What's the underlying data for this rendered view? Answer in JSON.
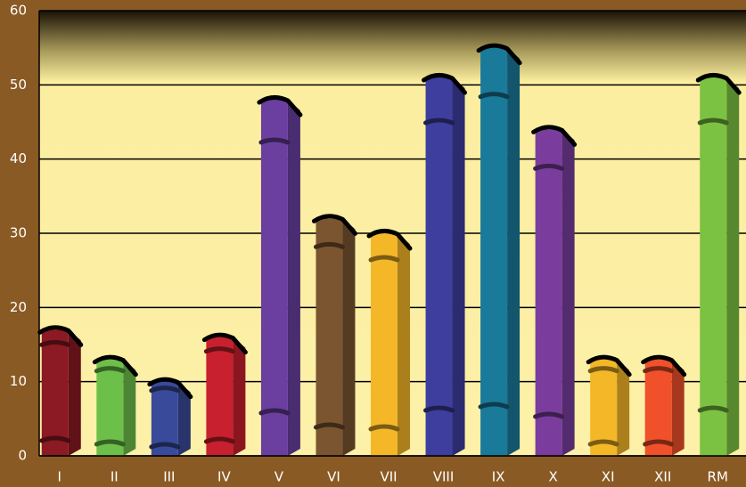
{
  "chart_data": {
    "type": "bar",
    "categories": [
      "I",
      "II",
      "III",
      "IV",
      "V",
      "VI",
      "VII",
      "VIII",
      "IX",
      "X",
      "XI",
      "XII",
      "RM"
    ],
    "values": [
      17,
      13,
      10,
      16,
      48,
      32,
      30,
      51,
      55,
      44,
      13,
      13,
      51
    ],
    "colors": [
      "#8b1a24",
      "#6cc04a",
      "#3a4a9a",
      "#c8202e",
      "#6a3fa0",
      "#7a5530",
      "#f4b728",
      "#3e3e9e",
      "#1a7a9a",
      "#7a3d9e",
      "#f4b728",
      "#f0502a",
      "#7cc242"
    ],
    "ylim": [
      0,
      60
    ],
    "yticks": [
      0,
      10,
      20,
      30,
      40,
      50,
      60
    ],
    "grid": true
  }
}
